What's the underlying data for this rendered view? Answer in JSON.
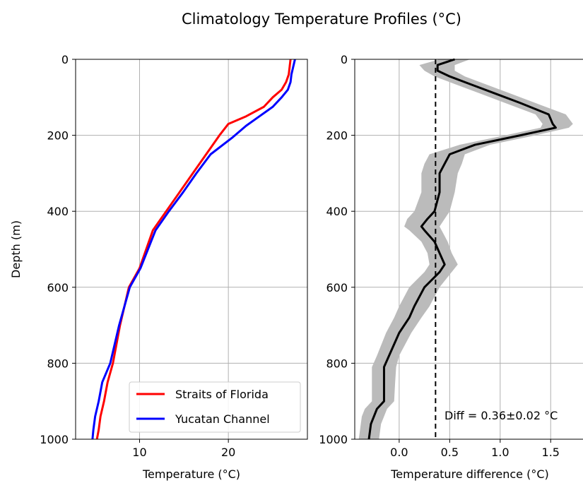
{
  "figure": {
    "suptitle": "Climatology Temperature Profiles (°C)"
  },
  "chart_data": [
    {
      "type": "line",
      "panel": "left",
      "xlabel": "Temperature (°C)",
      "ylabel": "Depth (m)",
      "xlim": [
        2.8,
        28.9
      ],
      "ylim": [
        1000,
        0
      ],
      "y_inverted": true,
      "xticks": [
        10,
        20
      ],
      "yticks": [
        0,
        200,
        400,
        600,
        800,
        1000
      ],
      "grid": true,
      "legend": {
        "position": "lower right",
        "entries": [
          "Straits of Florida",
          "Yucatan Channel"
        ]
      },
      "series": [
        {
          "name": "Straits of Florida",
          "color": "#ff0000",
          "x": [
            27.0,
            26.9,
            26.8,
            26.5,
            26.0,
            25.0,
            24.0,
            22.0,
            20.0,
            19.0,
            17.5,
            16.0,
            14.5,
            13.0,
            11.5,
            10.0,
            8.8,
            7.8,
            7.0,
            6.4,
            6.0,
            5.6,
            5.4,
            5.2
          ],
          "y": [
            0,
            20,
            40,
            60,
            80,
            100,
            125,
            150,
            170,
            200,
            250,
            300,
            350,
            400,
            450,
            550,
            600,
            700,
            800,
            850,
            900,
            940,
            975,
            1000
          ]
        },
        {
          "name": "Yucatan Channel",
          "color": "#0000ff",
          "x": [
            27.5,
            27.3,
            27.1,
            27.0,
            26.7,
            26.0,
            25.0,
            23.5,
            22.0,
            20.5,
            18.0,
            16.4,
            14.9,
            13.3,
            11.8,
            10.1,
            8.9,
            7.7,
            6.7,
            5.8,
            5.4,
            5.0,
            4.8,
            4.7
          ],
          "y": [
            0,
            20,
            40,
            60,
            80,
            100,
            125,
            150,
            175,
            205,
            250,
            300,
            350,
            400,
            450,
            550,
            600,
            700,
            800,
            850,
            900,
            940,
            975,
            1000
          ]
        }
      ]
    },
    {
      "type": "line",
      "panel": "right",
      "xlabel": "Temperature difference (°C)",
      "ylabel": "",
      "xlim": [
        -0.44,
        1.82
      ],
      "ylim": [
        1000,
        0
      ],
      "y_inverted": true,
      "xticks": [
        0.0,
        0.5,
        1.0,
        1.5
      ],
      "xtick_labels": [
        "0.0",
        "0.5",
        "1.0",
        "1.5"
      ],
      "yticks": [
        0,
        200,
        400,
        600,
        800,
        1000
      ],
      "grid": true,
      "mean_line": {
        "x": 0.36,
        "style": "dashed",
        "color": "#000000"
      },
      "annotation": "Diff = 0.36±0.02 °C",
      "series": [
        {
          "color": "#000000",
          "x": [
            0.55,
            0.38,
            0.38,
            0.5,
            0.7,
            0.95,
            1.2,
            1.48,
            1.52,
            1.55,
            1.2,
            0.75,
            0.5,
            0.45,
            0.4,
            0.4,
            0.35,
            0.28,
            0.22,
            0.25,
            0.35,
            0.4,
            0.45,
            0.4,
            0.25,
            0.15,
            0.1,
            0.0,
            -0.1,
            -0.15,
            -0.15,
            -0.15,
            -0.22,
            -0.25,
            -0.28,
            -0.3
          ],
          "y": [
            0,
            15,
            30,
            45,
            65,
            90,
            115,
            145,
            170,
            180,
            200,
            225,
            250,
            275,
            300,
            350,
            400,
            420,
            440,
            450,
            480,
            510,
            540,
            560,
            600,
            650,
            680,
            720,
            780,
            810,
            850,
            900,
            920,
            940,
            960,
            1000
          ]
        }
      ],
      "uncertainty_band": {
        "color": "#bbbbbb",
        "y": [
          0,
          15,
          30,
          45,
          65,
          90,
          115,
          145,
          170,
          180,
          200,
          225,
          250,
          275,
          300,
          350,
          400,
          420,
          440,
          450,
          480,
          510,
          540,
          560,
          600,
          650,
          680,
          720,
          780,
          810,
          850,
          900,
          920,
          940,
          960,
          1000
        ],
        "lower": [
          0.4,
          0.2,
          0.25,
          0.35,
          0.55,
          0.8,
          1.05,
          1.35,
          1.42,
          1.4,
          1.05,
          0.6,
          0.3,
          0.25,
          0.22,
          0.22,
          0.15,
          0.08,
          0.05,
          0.1,
          0.22,
          0.28,
          0.3,
          0.25,
          0.1,
          0.0,
          -0.05,
          -0.13,
          -0.22,
          -0.27,
          -0.27,
          -0.27,
          -0.34,
          -0.37,
          -0.38,
          -0.4
        ],
        "upper": [
          0.7,
          0.55,
          0.55,
          0.65,
          0.85,
          1.1,
          1.35,
          1.65,
          1.72,
          1.68,
          1.35,
          0.9,
          0.65,
          0.62,
          0.58,
          0.55,
          0.5,
          0.45,
          0.4,
          0.42,
          0.48,
          0.52,
          0.58,
          0.52,
          0.4,
          0.3,
          0.22,
          0.12,
          0.0,
          -0.03,
          -0.04,
          -0.05,
          -0.12,
          -0.15,
          -0.18,
          -0.2
        ]
      }
    }
  ]
}
